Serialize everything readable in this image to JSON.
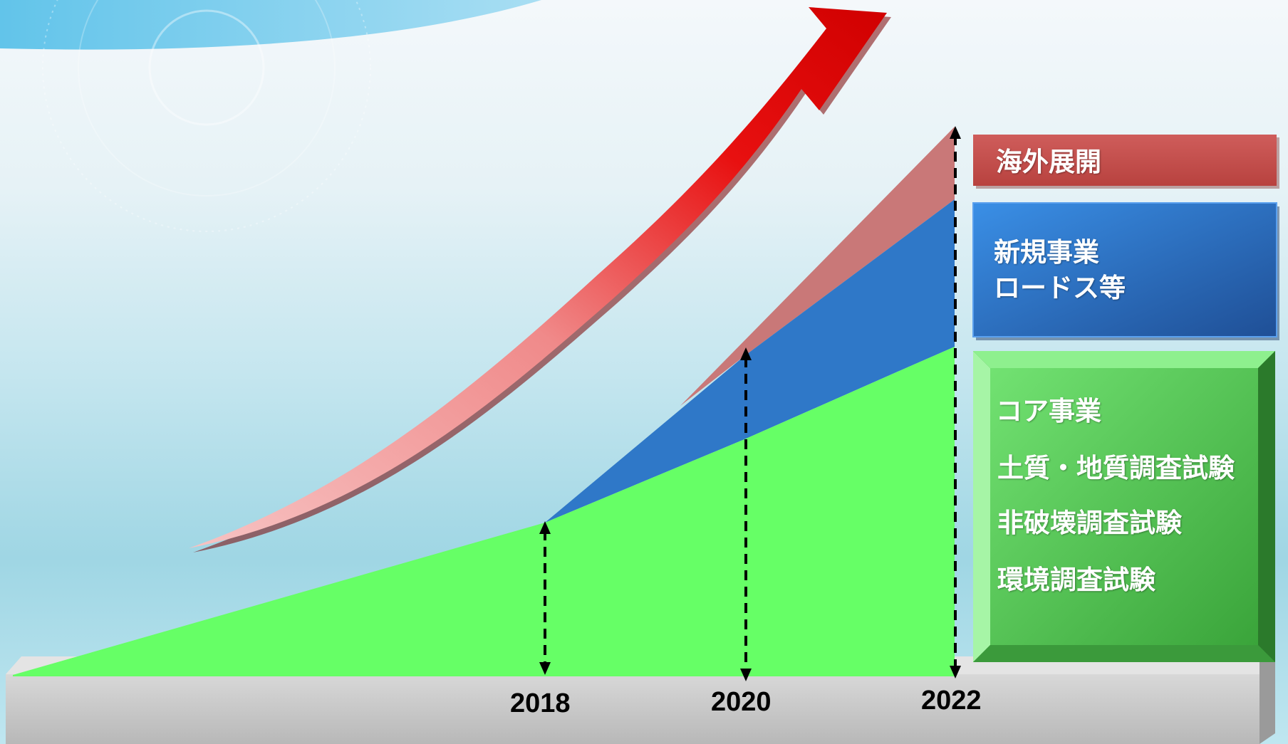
{
  "legend": {
    "overseas": {
      "label": "海外展開",
      "color": "#c0504d"
    },
    "new_business": {
      "lines": [
        "新規事業",
        "ロードス等"
      ],
      "color": "#2f6db7"
    },
    "core_business": {
      "title": "コア事業",
      "items": [
        "土質・地質調査試験",
        "非破壊調査試験",
        "環境調査試験"
      ],
      "color": "#5ac85a"
    }
  },
  "years": [
    "2018",
    "2020",
    "2022"
  ],
  "colors": {
    "growth_arrow": "#e60000",
    "core_area": "#66ff66",
    "new_area": "#2f78c8",
    "overseas_area": "#c97878",
    "base": "#c0c0c0"
  },
  "icons": {
    "growth": "growth-arrow-icon"
  }
}
